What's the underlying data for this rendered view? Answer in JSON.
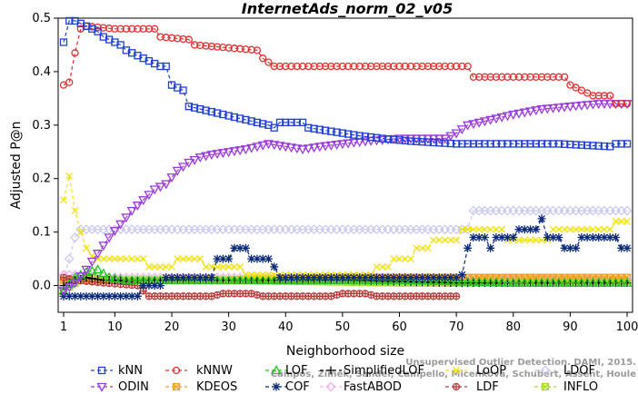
{
  "chart_data": {
    "type": "line",
    "title": "InternetAds_norm_02_v05",
    "xlabel": "Neighborhood size",
    "ylabel": "Adjusted P@n",
    "xlim": [
      1,
      100
    ],
    "ylim": [
      -0.05,
      0.5
    ],
    "xticks": [
      "1",
      "10",
      "20",
      "30",
      "40",
      "50",
      "60",
      "70",
      "80",
      "90",
      "100"
    ],
    "yticks": [
      "0.0",
      "0.1",
      "0.2",
      "0.3",
      "0.4",
      "0.5"
    ],
    "watermark": [
      "Campos, Zimek, Sander, Campello, Micenkova, Schubert, Assent, Houle",
      "Unsupervised Outlier Detection. DAMI, 2015."
    ],
    "series": [
      {
        "name": "kNN",
        "color": "#1f3fd6",
        "marker": "square",
        "points": [
          [
            1,
            0.455
          ],
          [
            2,
            0.495
          ],
          [
            3,
            0.495
          ],
          [
            4,
            0.49
          ],
          [
            5,
            0.485
          ],
          [
            6,
            0.48
          ],
          [
            7,
            0.475
          ],
          [
            8,
            0.465
          ],
          [
            9,
            0.46
          ],
          [
            10,
            0.455
          ],
          [
            11,
            0.45
          ],
          [
            12,
            0.44
          ],
          [
            13,
            0.435
          ],
          [
            14,
            0.43
          ],
          [
            15,
            0.425
          ],
          [
            16,
            0.42
          ],
          [
            17,
            0.415
          ],
          [
            18,
            0.41
          ],
          [
            19,
            0.41
          ],
          [
            20,
            0.375
          ],
          [
            21,
            0.37
          ],
          [
            22,
            0.365
          ],
          [
            23,
            0.335
          ],
          [
            25,
            0.33
          ],
          [
            27,
            0.325
          ],
          [
            29,
            0.32
          ],
          [
            31,
            0.315
          ],
          [
            33,
            0.31
          ],
          [
            35,
            0.305
          ],
          [
            37,
            0.3
          ],
          [
            38,
            0.295
          ],
          [
            39,
            0.305
          ],
          [
            43,
            0.305
          ],
          [
            44,
            0.295
          ],
          [
            47,
            0.29
          ],
          [
            50,
            0.285
          ],
          [
            53,
            0.28
          ],
          [
            57,
            0.275
          ],
          [
            62,
            0.27
          ],
          [
            70,
            0.265
          ],
          [
            88,
            0.265
          ],
          [
            97,
            0.26
          ],
          [
            98,
            0.265
          ],
          [
            100,
            0.265
          ]
        ]
      },
      {
        "name": "kNNW",
        "color": "#e03030",
        "marker": "circle",
        "points": [
          [
            1,
            0.375
          ],
          [
            2,
            0.38
          ],
          [
            3,
            0.435
          ],
          [
            4,
            0.48
          ],
          [
            5,
            0.485
          ],
          [
            10,
            0.48
          ],
          [
            17,
            0.48
          ],
          [
            18,
            0.465
          ],
          [
            23,
            0.46
          ],
          [
            24,
            0.45
          ],
          [
            35,
            0.44
          ],
          [
            36,
            0.425
          ],
          [
            38,
            0.41
          ],
          [
            72,
            0.41
          ],
          [
            73,
            0.39
          ],
          [
            89,
            0.39
          ],
          [
            90,
            0.375
          ],
          [
            92,
            0.365
          ],
          [
            94,
            0.355
          ],
          [
            97,
            0.355
          ],
          [
            98,
            0.34
          ],
          [
            100,
            0.34
          ]
        ]
      },
      {
        "name": "LOF",
        "color": "#22c422",
        "marker": "triangle-up",
        "points": [
          [
            1,
            -0.01
          ],
          [
            3,
            0.015
          ],
          [
            5,
            0.025
          ],
          [
            7,
            0.03
          ],
          [
            9,
            0.015
          ],
          [
            12,
            0.01
          ],
          [
            20,
            0.01
          ],
          [
            40,
            0.01
          ],
          [
            60,
            0.01
          ],
          [
            80,
            0.005
          ],
          [
            100,
            0.005
          ]
        ]
      },
      {
        "name": "SimplifiedLOF",
        "color": "#000000",
        "marker": "plus",
        "points": [
          [
            1,
            0.0
          ],
          [
            3,
            0.01
          ],
          [
            5,
            0.015
          ],
          [
            8,
            0.01
          ],
          [
            15,
            0.01
          ],
          [
            30,
            0.01
          ],
          [
            50,
            0.01
          ],
          [
            70,
            0.005
          ],
          [
            100,
            0.005
          ]
        ]
      },
      {
        "name": "LoOP",
        "color": "#f2e20a",
        "marker": "cross",
        "points": [
          [
            1,
            0.16
          ],
          [
            2,
            0.205
          ],
          [
            3,
            0.14
          ],
          [
            4,
            0.1
          ],
          [
            5,
            0.07
          ],
          [
            6,
            0.055
          ],
          [
            7,
            0.05
          ],
          [
            15,
            0.05
          ],
          [
            16,
            0.035
          ],
          [
            20,
            0.035
          ],
          [
            21,
            0.05
          ],
          [
            25,
            0.05
          ],
          [
            26,
            0.035
          ],
          [
            32,
            0.035
          ],
          [
            33,
            0.02
          ],
          [
            55,
            0.02
          ],
          [
            56,
            0.035
          ],
          [
            58,
            0.035
          ],
          [
            59,
            0.05
          ],
          [
            62,
            0.05
          ],
          [
            63,
            0.07
          ],
          [
            65,
            0.07
          ],
          [
            66,
            0.085
          ],
          [
            70,
            0.085
          ],
          [
            71,
            0.105
          ],
          [
            78,
            0.105
          ],
          [
            79,
            0.085
          ],
          [
            86,
            0.085
          ],
          [
            87,
            0.105
          ],
          [
            97,
            0.105
          ],
          [
            98,
            0.12
          ],
          [
            100,
            0.12
          ]
        ]
      },
      {
        "name": "LDOF",
        "color": "#c9c9ee",
        "marker": "diamond",
        "points": [
          [
            1,
            0.01
          ],
          [
            2,
            0.05
          ],
          [
            3,
            0.09
          ],
          [
            4,
            0.105
          ],
          [
            20,
            0.105
          ],
          [
            40,
            0.105
          ],
          [
            60,
            0.105
          ],
          [
            72,
            0.105
          ],
          [
            73,
            0.14
          ],
          [
            100,
            0.14
          ]
        ]
      },
      {
        "name": "ODIN",
        "color": "#9a3bdb",
        "marker": "triangle-down",
        "points": [
          [
            1,
            -0.01
          ],
          [
            3,
            0.005
          ],
          [
            5,
            0.03
          ],
          [
            7,
            0.06
          ],
          [
            9,
            0.09
          ],
          [
            11,
            0.115
          ],
          [
            13,
            0.14
          ],
          [
            15,
            0.16
          ],
          [
            17,
            0.18
          ],
          [
            19,
            0.19
          ],
          [
            21,
            0.215
          ],
          [
            23,
            0.23
          ],
          [
            25,
            0.24
          ],
          [
            27,
            0.245
          ],
          [
            30,
            0.25
          ],
          [
            33,
            0.255
          ],
          [
            35,
            0.26
          ],
          [
            37,
            0.265
          ],
          [
            40,
            0.26
          ],
          [
            43,
            0.255
          ],
          [
            46,
            0.26
          ],
          [
            50,
            0.265
          ],
          [
            54,
            0.27
          ],
          [
            60,
            0.275
          ],
          [
            68,
            0.275
          ],
          [
            70,
            0.285
          ],
          [
            72,
            0.3
          ],
          [
            76,
            0.31
          ],
          [
            80,
            0.32
          ],
          [
            85,
            0.33
          ],
          [
            90,
            0.335
          ],
          [
            95,
            0.34
          ],
          [
            100,
            0.34
          ]
        ]
      },
      {
        "name": "KDEOS",
        "color": "#f0a020",
        "marker": "square-x",
        "points": [
          [
            1,
            0.01
          ],
          [
            10,
            0.01
          ],
          [
            30,
            0.01
          ],
          [
            50,
            0.015
          ],
          [
            70,
            0.015
          ],
          [
            100,
            0.015
          ]
        ]
      },
      {
        "name": "COF",
        "color": "#0c2a7a",
        "marker": "asterisk",
        "points": [
          [
            1,
            -0.02
          ],
          [
            10,
            -0.02
          ],
          [
            14,
            -0.02
          ],
          [
            15,
            0.0
          ],
          [
            18,
            0.0
          ],
          [
            19,
            0.015
          ],
          [
            27,
            0.015
          ],
          [
            28,
            0.05
          ],
          [
            30,
            0.05
          ],
          [
            31,
            0.07
          ],
          [
            33,
            0.07
          ],
          [
            34,
            0.05
          ],
          [
            37,
            0.05
          ],
          [
            38,
            0.035
          ],
          [
            39,
            0.015
          ],
          [
            70,
            0.015
          ],
          [
            71,
            0.02
          ],
          [
            72,
            0.07
          ],
          [
            73,
            0.09
          ],
          [
            75,
            0.09
          ],
          [
            76,
            0.07
          ],
          [
            77,
            0.09
          ],
          [
            80,
            0.09
          ],
          [
            81,
            0.105
          ],
          [
            84,
            0.105
          ],
          [
            85,
            0.125
          ],
          [
            86,
            0.09
          ],
          [
            88,
            0.09
          ],
          [
            89,
            0.07
          ],
          [
            91,
            0.07
          ],
          [
            92,
            0.09
          ],
          [
            98,
            0.09
          ],
          [
            99,
            0.07
          ],
          [
            100,
            0.07
          ]
        ]
      },
      {
        "name": "FastABOD",
        "color": "#f0b0f0",
        "marker": "diamond",
        "points": [
          [
            1,
            0.02
          ],
          [
            3,
            0.02
          ],
          [
            10,
            0.015
          ],
          [
            30,
            0.015
          ],
          [
            60,
            0.015
          ],
          [
            100,
            0.01
          ]
        ]
      },
      {
        "name": "LDF",
        "color": "#b83a3a",
        "marker": "circle-plus",
        "points": [
          [
            1,
            0.015
          ],
          [
            3,
            0.01
          ],
          [
            8,
            0.005
          ],
          [
            14,
            0.0
          ],
          [
            16,
            -0.02
          ],
          [
            27,
            -0.02
          ],
          [
            29,
            -0.015
          ],
          [
            34,
            -0.015
          ],
          [
            36,
            -0.02
          ],
          [
            48,
            -0.02
          ],
          [
            50,
            -0.015
          ],
          [
            54,
            -0.015
          ],
          [
            56,
            -0.02
          ],
          [
            65,
            -0.02
          ],
          [
            70,
            -0.02
          ]
        ]
      },
      {
        "name": "INFLO",
        "color": "#a8d830",
        "marker": "square-x",
        "points": [
          [
            1,
            -0.01
          ],
          [
            3,
            0.005
          ],
          [
            5,
            0.015
          ],
          [
            10,
            0.01
          ],
          [
            30,
            0.01
          ],
          [
            60,
            0.005
          ],
          [
            100,
            0.005
          ]
        ]
      }
    ]
  }
}
